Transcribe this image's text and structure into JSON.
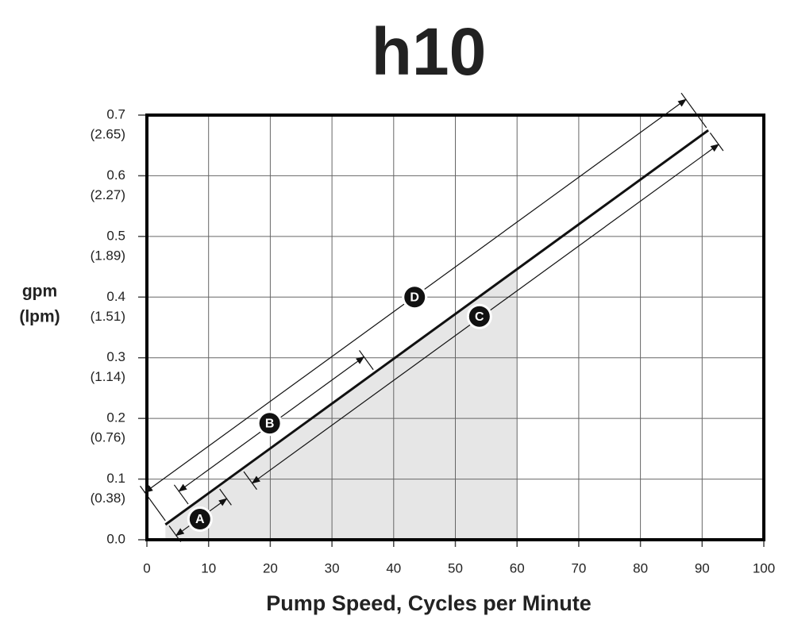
{
  "chart_data": {
    "type": "line",
    "title": "h10",
    "xlabel": "Pump Speed, Cycles per Minute",
    "ylabel": "gpm",
    "ylabel_secondary": "(lpm)",
    "xlim": [
      0,
      100
    ],
    "xticks": [
      0,
      10,
      20,
      30,
      40,
      50,
      60,
      70,
      80,
      90,
      100
    ],
    "ylim": [
      0,
      0.7
    ],
    "yticks": [
      {
        "value": 0,
        "label": "0.0"
      },
      0.1,
      0.2,
      0.3,
      0.4,
      0.5,
      0.6,
      0.7
    ],
    "ytick_secondary_labels": [
      null,
      "(0.38)",
      "(0.76)",
      "(1.14)",
      "(1.51)",
      "(1.89)",
      "(2.27)",
      "(2.65)"
    ],
    "grid": true,
    "series": [
      {
        "color": "#111111",
        "x": [
          3,
          91
        ],
        "values": [
          0.025,
          0.675
        ]
      }
    ],
    "shaded_area": {
      "color": "#e6e6e6",
      "x": [
        3,
        60
      ],
      "values": [
        0.025,
        0.446
      ]
    },
    "annotations": [
      {
        "label": "A",
        "x": 8.6,
        "y": 0.034,
        "range": [
          3.3,
          11.5
        ],
        "side": "below"
      },
      {
        "label": "B",
        "x": 19.9,
        "y": 0.192,
        "range": [
          7,
          37
        ],
        "side": "above"
      },
      {
        "label": "C",
        "x": 53.9,
        "y": 0.368,
        "range": [
          15.4,
          91
        ],
        "side": "below"
      },
      {
        "label": "D",
        "x": 43.4,
        "y": 0.4,
        "range": [
          3.3,
          91
        ],
        "side": "above"
      }
    ]
  }
}
